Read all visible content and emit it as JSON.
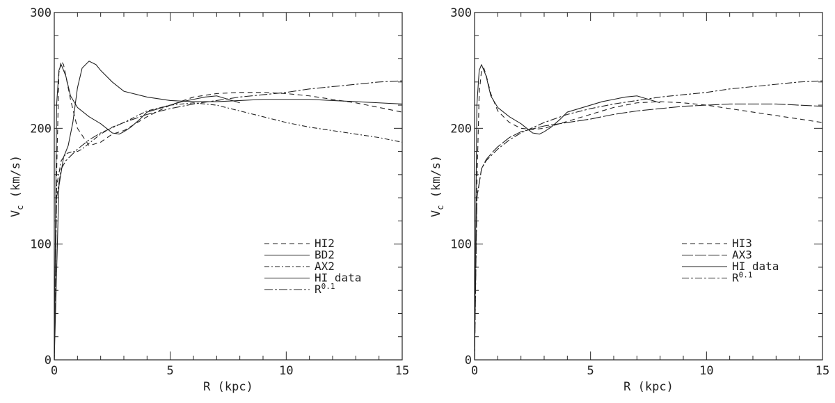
{
  "chart_data": [
    {
      "type": "line",
      "xlabel": "R (kpc)",
      "ylabel": "V",
      "ylabel_sub": "c",
      "ylabel_unit": " (km/s)",
      "xlim": [
        0,
        15
      ],
      "ylim": [
        0,
        300
      ],
      "xticks": [
        0,
        5,
        10,
        15
      ],
      "yticks": [
        0,
        100,
        200,
        300
      ],
      "xtick_labels": [
        "0",
        "5",
        "10",
        "15"
      ],
      "ytick_labels": [
        "0",
        "100",
        "200",
        "300"
      ],
      "legend_position": "bottom-right",
      "series": [
        {
          "name": "HI2",
          "dash": "7,5",
          "color": "#222222",
          "x": [
            0,
            0.1,
            0.2,
            0.3,
            0.4,
            0.5,
            0.7,
            1.0,
            1.5,
            2.0,
            2.5,
            3.0,
            4.0,
            5.0,
            6.0,
            7.0,
            8.0,
            9.0,
            10.0,
            11.0,
            12.0,
            13.0,
            14.0,
            15.0
          ],
          "y": [
            0,
            160,
            248,
            258,
            255,
            245,
            225,
            200,
            185,
            188,
            195,
            198,
            210,
            220,
            227,
            230,
            231,
            231,
            230,
            228,
            225,
            222,
            218,
            214
          ]
        },
        {
          "name": "BD2",
          "dash": "",
          "color": "#222222",
          "x": [
            0,
            0.2,
            0.4,
            0.6,
            0.8,
            1.0,
            1.2,
            1.5,
            1.8,
            2.0,
            2.5,
            3.0,
            4.0,
            5.0,
            6.0,
            7.0,
            8.0,
            9.0,
            10.0,
            11.0,
            12.0,
            13.0,
            14.0,
            15.0
          ],
          "y": [
            0,
            150,
            175,
            185,
            205,
            235,
            252,
            258,
            255,
            250,
            240,
            232,
            227,
            224,
            223,
            223,
            224,
            225,
            225,
            225,
            224,
            223,
            222,
            221
          ]
        },
        {
          "name": "AX2",
          "dash": "7,3,2,3",
          "color": "#222222",
          "x": [
            0,
            0.1,
            0.3,
            0.5,
            0.8,
            1.0,
            1.2,
            1.5,
            2.0,
            2.5,
            3.0,
            3.5,
            4.0,
            5.0,
            6.0,
            7.0,
            8.0,
            9.0,
            10.0,
            11.0,
            12.0,
            13.0,
            14.0,
            15.0
          ],
          "y": [
            0,
            150,
            172,
            178,
            180,
            180,
            182,
            187,
            195,
            201,
            205,
            210,
            215,
            220,
            222,
            220,
            215,
            210,
            205,
            201,
            198,
            195,
            192,
            188
          ]
        },
        {
          "name": "HI data",
          "dash": "",
          "color": "#222222",
          "x": [
            0,
            0.1,
            0.2,
            0.3,
            0.5,
            0.7,
            1.0,
            1.5,
            2.0,
            2.5,
            2.8,
            3.0,
            3.3,
            3.7,
            4.0,
            4.5,
            5.0,
            5.5,
            6.0,
            6.5,
            7.0,
            7.5,
            8.0
          ],
          "y": [
            0,
            220,
            250,
            255,
            245,
            228,
            218,
            210,
            204,
            196,
            195,
            197,
            201,
            208,
            214,
            217,
            220,
            223,
            225,
            227,
            228,
            225,
            222
          ]
        },
        {
          "name": "R^0.1",
          "dash": "12,3,3,3",
          "color": "#777777",
          "x": [
            0,
            0.1,
            0.3,
            0.5,
            0.8,
            1.0,
            1.5,
            2.0,
            3.0,
            4.0,
            5.0,
            6.0,
            7.0,
            8.0,
            9.0,
            10.0,
            11.0,
            12.0,
            13.0,
            14.0,
            15.0
          ],
          "y": [
            0,
            140,
            165,
            172,
            178,
            182,
            190,
            196,
            205,
            212,
            217,
            221,
            224,
            227,
            229,
            231,
            234,
            236,
            238,
            240,
            241
          ]
        }
      ]
    },
    {
      "type": "line",
      "xlabel": "R (kpc)",
      "ylabel": "V",
      "ylabel_sub": "c",
      "ylabel_unit": " (km/s)",
      "xlim": [
        0,
        15
      ],
      "ylim": [
        0,
        300
      ],
      "xticks": [
        0,
        5,
        10,
        15
      ],
      "yticks": [
        0,
        100,
        200,
        300
      ],
      "xtick_labels": [
        "0",
        "5",
        "10",
        "15"
      ],
      "ytick_labels": [
        "0",
        "100",
        "200",
        "300"
      ],
      "legend_position": "bottom-right",
      "series": [
        {
          "name": "HI3",
          "dash": "7,5",
          "color": "#222222",
          "x": [
            0,
            0.1,
            0.2,
            0.3,
            0.4,
            0.5,
            0.7,
            1.0,
            1.5,
            2.0,
            2.5,
            3.0,
            4.0,
            5.0,
            6.0,
            7.0,
            8.0,
            9.0,
            10.0,
            11.0,
            12.0,
            13.0,
            14.0,
            15.0
          ],
          "y": [
            0,
            150,
            230,
            250,
            252,
            246,
            230,
            215,
            205,
            200,
            199,
            200,
            206,
            212,
            218,
            222,
            223,
            222,
            220,
            217,
            214,
            211,
            208,
            205
          ]
        },
        {
          "name": "AX3",
          "dash": "16,3",
          "color": "#222222",
          "x": [
            0,
            0.1,
            0.3,
            0.5,
            0.8,
            1.0,
            1.5,
            2.0,
            3.0,
            4.0,
            5.0,
            6.0,
            7.0,
            8.0,
            9.0,
            10.0,
            11.0,
            12.0,
            13.0,
            14.0,
            15.0
          ],
          "y": [
            0,
            140,
            165,
            173,
            180,
            184,
            192,
            197,
            202,
            205,
            208,
            212,
            215,
            217,
            219,
            220,
            221,
            221,
            221,
            220,
            219
          ]
        },
        {
          "name": "HI data",
          "dash": "",
          "color": "#555555",
          "x": [
            0,
            0.1,
            0.2,
            0.3,
            0.5,
            0.7,
            1.0,
            1.5,
            2.0,
            2.5,
            2.8,
            3.0,
            3.3,
            3.7,
            4.0,
            4.5,
            5.0,
            5.5,
            6.0,
            6.5,
            7.0,
            7.5,
            8.0
          ],
          "y": [
            0,
            220,
            250,
            255,
            245,
            228,
            218,
            210,
            204,
            196,
            195,
            197,
            201,
            208,
            214,
            217,
            220,
            223,
            225,
            227,
            228,
            225,
            222
          ]
        },
        {
          "name": "R^0.1",
          "dash": "10,3,3,3",
          "color": "#222222",
          "x": [
            0,
            0.1,
            0.3,
            0.5,
            0.8,
            1.0,
            1.5,
            2.0,
            3.0,
            4.0,
            5.0,
            6.0,
            7.0,
            8.0,
            9.0,
            10.0,
            11.0,
            12.0,
            13.0,
            14.0,
            15.0
          ],
          "y": [
            0,
            140,
            165,
            172,
            178,
            182,
            190,
            196,
            205,
            212,
            217,
            221,
            224,
            227,
            229,
            231,
            234,
            236,
            238,
            240,
            241
          ]
        }
      ]
    }
  ]
}
